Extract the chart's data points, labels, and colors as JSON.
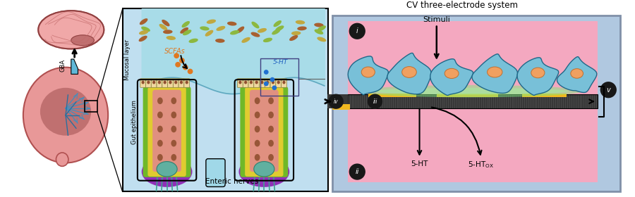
{
  "title": "CV three-electrode system",
  "label_i": "i",
  "label_ii": "ii",
  "label_iii": "iii",
  "label_iv": "iv",
  "label_v": "v",
  "label_stimuli": "Stimuli",
  "label_5ht": "5-HT",
  "label_5htox": "5-HT",
  "label_ox": "OX",
  "label_gba": "GBA",
  "label_mucosal": "Mucosal layer",
  "label_gut": "Gut epithelium",
  "label_enteric": "Enteric nerves",
  "label_scfas": "SCFAs",
  "brain_color": "#f0a8a8",
  "brain_edge": "#c06060",
  "gut_color": "#e89898",
  "gut_edge": "#b05050",
  "mid_bg": "#c0dff0",
  "mucosa_blue": "#a8d8e8",
  "bacteria_green": "#8cb840",
  "bacteria_olive": "#c0a840",
  "bacteria_brown": "#a86030",
  "scfa_orange": "#e07820",
  "cell_peach": "#f0d0a0",
  "cell_edge": "#808040",
  "cell_brown": "#986030",
  "yellow_band": "#e8d040",
  "green_band": "#78c030",
  "purple_base": "#9030b0",
  "core_pink": "#e09080",
  "nerve_teal": "#40a090",
  "right_blue": "#a8c8e0",
  "right_pink": "#f4a8c0",
  "membrane_dark": "#404040",
  "gold": "#f0b820",
  "cell_blue_fill": "#78c0d8",
  "cell_blue_edge": "#206888",
  "nucleus_orange": "#f0a060"
}
